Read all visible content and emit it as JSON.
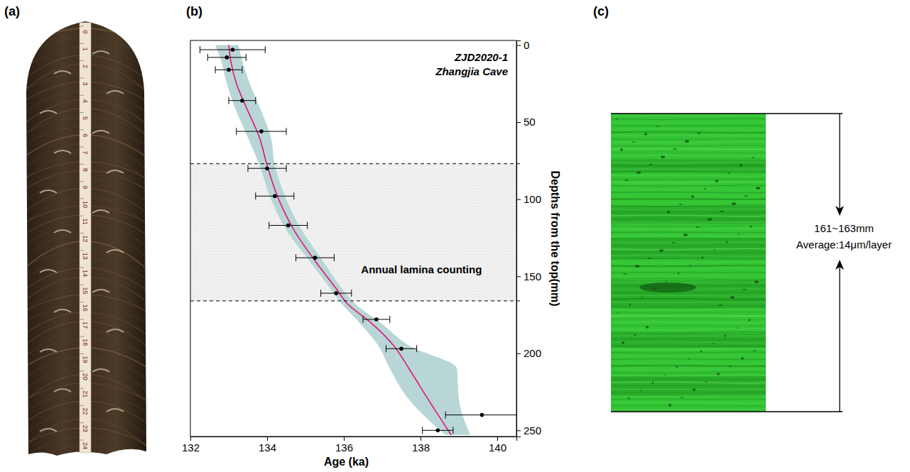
{
  "panel_labels": [
    "(a)",
    "(b)",
    "(c)"
  ],
  "photo": {
    "ruler_labels": [
      0,
      1,
      2,
      3,
      4,
      5,
      6,
      7,
      8,
      9,
      10,
      11,
      12,
      13,
      14,
      15,
      16,
      17,
      18,
      19,
      20,
      21,
      22,
      23,
      24
    ]
  },
  "chart_data": {
    "type": "scatter",
    "title": "ZJD2020-1",
    "subtitle": "Zhangjia Cave",
    "x_label": "Age (ka)",
    "y_label": "Depths from the top(mm)",
    "xlim": [
      132,
      140.5
    ],
    "xticks": [
      132,
      134,
      136,
      138,
      140
    ],
    "ylim": [
      254,
      -3
    ],
    "yticks": [
      0,
      50,
      100,
      150,
      200,
      250
    ],
    "points": {
      "age": [
        133.1,
        132.95,
        133.0,
        133.35,
        133.85,
        134.0,
        134.2,
        134.55,
        135.25,
        135.8,
        136.85,
        137.5,
        139.6,
        138.45
      ],
      "depth": [
        3,
        8,
        16,
        36,
        56,
        80,
        98,
        117,
        138,
        161,
        178,
        197,
        240,
        250
      ],
      "age_error": [
        0.85,
        0.5,
        0.35,
        0.35,
        0.65,
        0.5,
        0.5,
        0.5,
        0.5,
        0.4,
        0.35,
        0.4,
        0.95,
        0.4
      ],
      "color": "#000000"
    },
    "age_model": {
      "depth": [
        0,
        10,
        25,
        40,
        60,
        78,
        100,
        120,
        140,
        158,
        168,
        180,
        195,
        210,
        230,
        253
      ],
      "age": [
        133.0,
        133.05,
        133.2,
        133.45,
        133.8,
        134.0,
        134.3,
        134.7,
        135.25,
        135.8,
        136.1,
        136.7,
        137.3,
        137.7,
        138.2,
        138.8
      ],
      "lower": [
        132.65,
        132.8,
        132.95,
        133.15,
        133.5,
        133.8,
        134.1,
        134.5,
        135.1,
        135.65,
        135.95,
        136.4,
        136.9,
        137.2,
        137.7,
        138.65
      ],
      "upper": [
        133.25,
        133.35,
        133.55,
        133.8,
        134.1,
        134.2,
        134.5,
        134.9,
        135.45,
        135.95,
        136.3,
        136.95,
        137.7,
        138.95,
        139.0,
        139.3
      ],
      "color": "#e0157a",
      "band_color": "#b8d6d6"
    },
    "lamina_counting": {
      "label": "Annual lamina counting",
      "depth_range": [
        77,
        166
      ]
    }
  },
  "microscope_image": {
    "range_label": "161~163mm",
    "average_label": "Average:14μm/layer"
  }
}
